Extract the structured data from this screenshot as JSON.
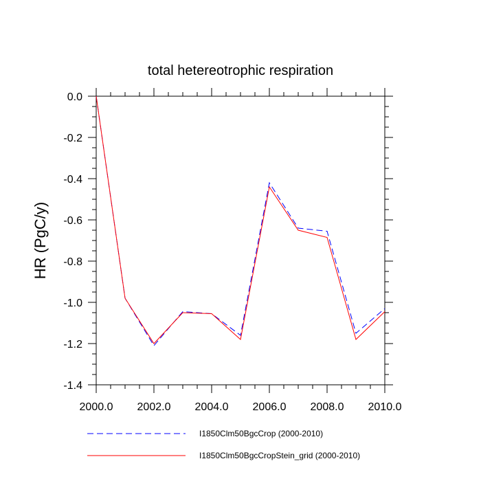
{
  "chart_data": {
    "type": "line",
    "title": "total hetereotrophic respiration",
    "xlabel": "",
    "ylabel": "HR  (PgC/y)",
    "xlim": [
      2000,
      2010
    ],
    "ylim": [
      -1.4,
      0.0
    ],
    "grid": false,
    "legend_position": "bottom",
    "x": [
      2000,
      2001,
      2002,
      2003,
      2004,
      2005,
      2006,
      2007,
      2008,
      2009,
      2010
    ],
    "x_ticks": [
      "2000.0",
      "2002.0",
      "2004.0",
      "2006.0",
      "2008.0",
      "2010.0"
    ],
    "y_ticks": [
      "0.0",
      "-0.2",
      "-0.4",
      "-0.6",
      "-0.8",
      "-1.0",
      "-1.2",
      "-1.4"
    ],
    "series": [
      {
        "name": "I1850Clm50BgcCrop (2000-2010)",
        "color": "#0000ff",
        "dash": "dashed",
        "values": [
          0.0,
          -0.98,
          -1.21,
          -1.045,
          -1.055,
          -1.16,
          -0.42,
          -0.64,
          -0.655,
          -1.15,
          -1.03
        ]
      },
      {
        "name": "I1850Clm50BgcCropStein_grid (2000-2010)",
        "color": "#ff0000",
        "dash": "solid",
        "values": [
          0.0,
          -0.98,
          -1.2,
          -1.05,
          -1.055,
          -1.18,
          -0.44,
          -0.65,
          -0.685,
          -1.18,
          -1.045
        ]
      }
    ]
  }
}
